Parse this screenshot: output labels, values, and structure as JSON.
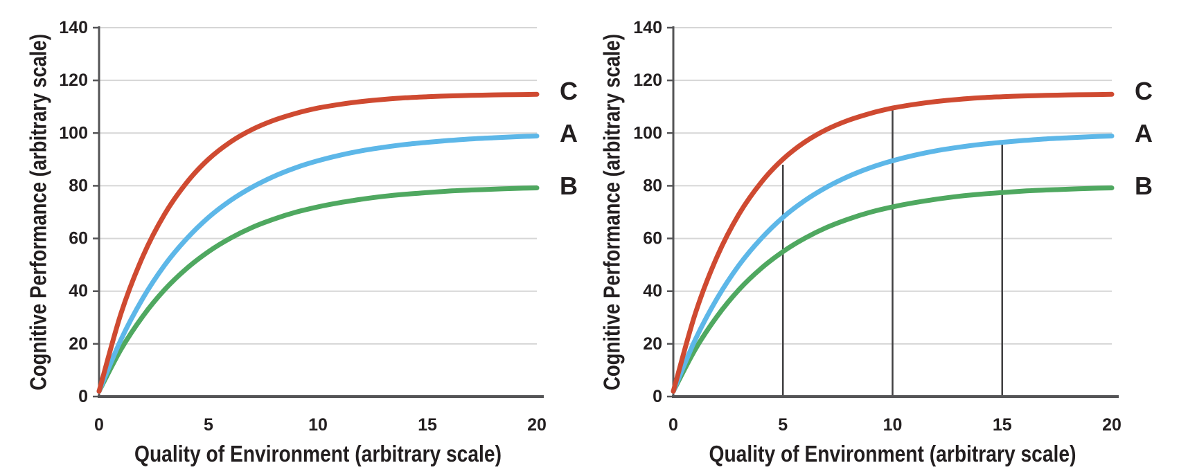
{
  "figure": {
    "y_axis_title": "Cognitive Performance (arbitrary scale)",
    "x_axis_title": "Quality of Environment (arbitrary scale)",
    "colors": {
      "curve_c_red": "#cf4a31",
      "curve_a_blue": "#5db7e8",
      "curve_b_green": "#4fa860",
      "gridline": "#d6d6d6",
      "axis": "#545456",
      "vertical_line": "#414042",
      "text": "#231f20"
    }
  },
  "chart_data": [
    {
      "type": "line",
      "panel": "left",
      "title": "",
      "xlabel": "Quality of Environment (arbitrary scale)",
      "ylabel": "Cognitive Performance (arbitrary scale)",
      "xlim": [
        0,
        20
      ],
      "ylim": [
        0,
        140
      ],
      "x_ticks": [
        0,
        5,
        10,
        15,
        20
      ],
      "y_ticks": [
        0,
        20,
        40,
        60,
        80,
        100,
        120,
        140
      ],
      "grid": "horizontal",
      "legend_position": "right-inline-labels",
      "x": [
        0,
        1,
        2,
        3,
        4,
        5,
        6,
        7,
        8,
        9,
        10,
        11,
        12,
        13,
        14,
        15,
        16,
        17,
        18,
        19,
        20
      ],
      "series": [
        {
          "name": "B",
          "color": "#4fa860",
          "values": [
            2,
            17.9,
            30.5,
            40.6,
            48.6,
            55,
            60.1,
            64.2,
            67.4,
            70,
            72,
            73.6,
            74.9,
            76,
            76.8,
            77.4,
            78,
            78.4,
            78.7,
            79,
            79.2
          ]
        },
        {
          "name": "A",
          "color": "#5db7e8",
          "values": [
            2,
            21.6,
            37.3,
            49.9,
            59.9,
            68,
            74.4,
            79.5,
            83.6,
            86.9,
            89.5,
            91.6,
            93.3,
            94.6,
            95.7,
            96.5,
            97.2,
            97.8,
            98.2,
            98.6,
            98.9
          ]
        },
        {
          "name": "C",
          "color": "#cf4a31",
          "values": [
            2,
            31.5,
            53.2,
            69.3,
            81.2,
            90.1,
            96.6,
            101.4,
            104.9,
            107.5,
            109.5,
            110.9,
            112,
            112.8,
            113.4,
            113.8,
            114.1,
            114.3,
            114.5,
            114.6,
            114.7
          ]
        }
      ],
      "curve_labels": [
        {
          "text": "C",
          "value": 116
        },
        {
          "text": "A",
          "value": 100
        },
        {
          "text": "B",
          "value": 80
        }
      ],
      "vertical_lines": []
    },
    {
      "type": "line",
      "panel": "right",
      "title": "",
      "xlabel": "Quality of Environment (arbitrary scale)",
      "ylabel": "Cognitive Performance (arbitrary scale)",
      "xlim": [
        0,
        20
      ],
      "ylim": [
        0,
        140
      ],
      "x_ticks": [
        0,
        5,
        10,
        15,
        20
      ],
      "y_ticks": [
        0,
        20,
        40,
        60,
        80,
        100,
        120,
        140
      ],
      "grid": "horizontal",
      "legend_position": "right-inline-labels",
      "x": [
        0,
        1,
        2,
        3,
        4,
        5,
        6,
        7,
        8,
        9,
        10,
        11,
        12,
        13,
        14,
        15,
        16,
        17,
        18,
        19,
        20
      ],
      "series": [
        {
          "name": "B",
          "color": "#4fa860",
          "values": [
            2,
            17.9,
            30.5,
            40.6,
            48.6,
            55,
            60.1,
            64.2,
            67.4,
            70,
            72,
            73.6,
            74.9,
            76,
            76.8,
            77.4,
            78,
            78.4,
            78.7,
            79,
            79.2
          ]
        },
        {
          "name": "A",
          "color": "#5db7e8",
          "values": [
            2,
            21.6,
            37.3,
            49.9,
            59.9,
            68,
            74.4,
            79.5,
            83.6,
            86.9,
            89.5,
            91.6,
            93.3,
            94.6,
            95.7,
            96.5,
            97.2,
            97.8,
            98.2,
            98.6,
            98.9
          ]
        },
        {
          "name": "C",
          "color": "#cf4a31",
          "values": [
            2,
            31.5,
            53.2,
            69.3,
            81.2,
            90.1,
            96.6,
            101.4,
            104.9,
            107.5,
            109.5,
            110.9,
            112,
            112.8,
            113.4,
            113.8,
            114.1,
            114.3,
            114.5,
            114.6,
            114.7
          ]
        }
      ],
      "curve_labels": [
        {
          "text": "C",
          "value": 116
        },
        {
          "text": "A",
          "value": 100
        },
        {
          "text": "B",
          "value": 80
        }
      ],
      "vertical_lines": [
        {
          "x": 5,
          "top": 88
        },
        {
          "x": 10,
          "top": 109
        },
        {
          "x": 15,
          "top": 97
        }
      ]
    }
  ]
}
